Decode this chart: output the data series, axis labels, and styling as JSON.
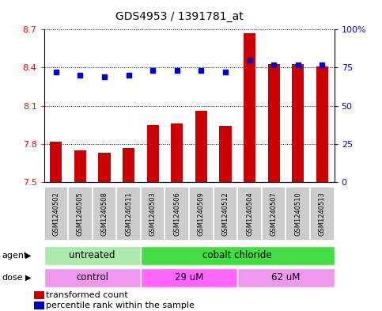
{
  "title": "GDS4953 / 1391781_at",
  "samples": [
    "GSM1240502",
    "GSM1240505",
    "GSM1240508",
    "GSM1240511",
    "GSM1240503",
    "GSM1240506",
    "GSM1240509",
    "GSM1240512",
    "GSM1240504",
    "GSM1240507",
    "GSM1240510",
    "GSM1240513"
  ],
  "transformed_count": [
    7.82,
    7.75,
    7.73,
    7.77,
    7.95,
    7.96,
    8.06,
    7.94,
    8.67,
    8.43,
    8.43,
    8.41
  ],
  "percentile_rank": [
    72,
    70,
    69,
    70,
    73,
    73,
    73,
    72,
    80,
    77,
    77,
    77
  ],
  "y_min": 7.5,
  "y_max": 8.7,
  "y_ticks": [
    7.5,
    7.8,
    8.1,
    8.4,
    8.7
  ],
  "y_tick_labels": [
    "7.5",
    "7.8",
    "8.1",
    "8.4",
    "8.7"
  ],
  "y2_ticks": [
    0,
    25,
    50,
    75,
    100
  ],
  "y2_tick_labels": [
    "0",
    "25",
    "50",
    "75",
    "100%"
  ],
  "bar_color": "#cc0000",
  "dot_color": "#0000cc",
  "agent_groups": [
    {
      "label": "untreated",
      "start": 0,
      "end": 4,
      "color": "#aaeaaa"
    },
    {
      "label": "cobalt chloride",
      "start": 4,
      "end": 12,
      "color": "#44dd44"
    }
  ],
  "dose_groups": [
    {
      "label": "control",
      "start": 0,
      "end": 4,
      "color": "#ee99ee"
    },
    {
      "label": "29 uM",
      "start": 4,
      "end": 8,
      "color": "#ff66ff"
    },
    {
      "label": "62 uM",
      "start": 8,
      "end": 12,
      "color": "#ee99ee"
    }
  ],
  "legend_red_label": "transformed count",
  "legend_blue_label": "percentile rank within the sample",
  "bg_color": "#ffffff",
  "plot_bg_color": "#ffffff",
  "agent_label": "agent",
  "dose_label": "dose",
  "sample_bg_color": "#cccccc",
  "border_color": "#888888"
}
